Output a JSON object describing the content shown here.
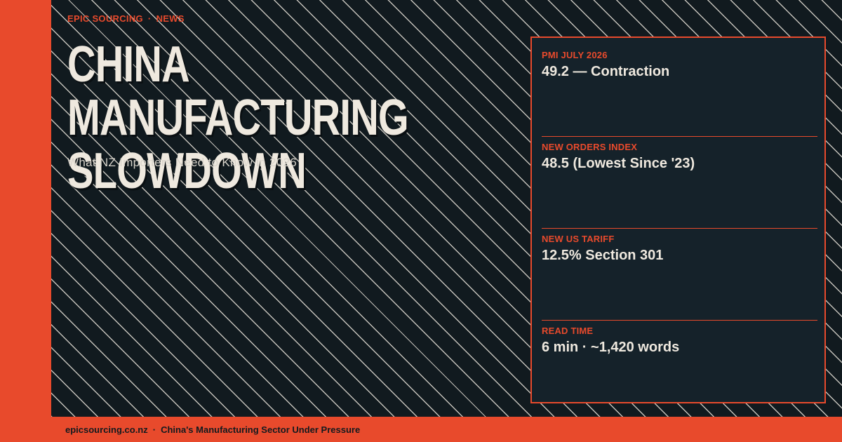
{
  "eyebrow": {
    "brand": "EPIC SOURCING",
    "separator": "·",
    "section": "NEWS"
  },
  "headline": {
    "line1": "CHINA MANUFACTURING",
    "line2": "SLOWDOWN"
  },
  "subtitle": "What NZ Importers Need to Know in 2026",
  "stats": [
    {
      "label": "PMI JULY 2026",
      "value": "49.2 — Contraction"
    },
    {
      "label": "NEW ORDERS INDEX",
      "value": "48.5 (Lowest Since '23)"
    },
    {
      "label": "NEW US TARIFF",
      "value": "12.5% Section 301"
    },
    {
      "label": "READ TIME",
      "value": "6 min · ~1,420 words"
    }
  ],
  "footer": {
    "domain": "epicsourcing.co.nz",
    "separator": "·",
    "tagline": "China's Manufacturing Sector Under Pressure"
  },
  "colors": {
    "accent": "#e84a2c",
    "background": "#111a1f",
    "card": "#15222a",
    "text": "#efe9df"
  }
}
